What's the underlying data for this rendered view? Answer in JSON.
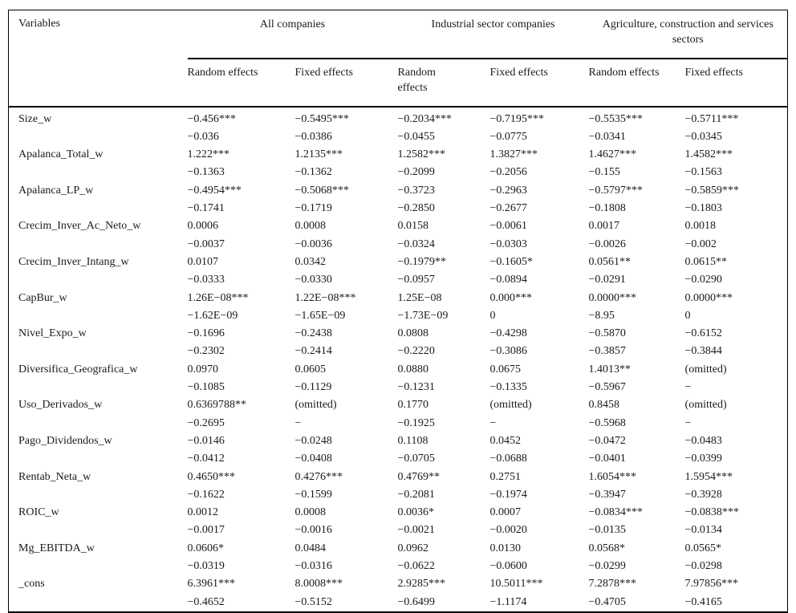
{
  "table": {
    "variables_header": "Variables",
    "groups": [
      {
        "label": "All companies"
      },
      {
        "label": "Industrial sector companies"
      },
      {
        "label": "Agriculture, construction and services sectors"
      }
    ],
    "subheaders": [
      "Random effects",
      "Fixed effects",
      "Random effects",
      "Fixed effects",
      "Random effects",
      "Fixed effects"
    ],
    "rows": [
      {
        "variable": "Size_w",
        "coef": [
          "−0.456***",
          "−0.5495***",
          "−0.2034***",
          "−0.7195***",
          "−0.5535***",
          "−0.5711***"
        ],
        "se": [
          "−0.036",
          "−0.0386",
          "−0.0455",
          "−0.0775",
          "−0.0341",
          "−0.0345"
        ]
      },
      {
        "variable": "Apalanca_Total_w",
        "coef": [
          "1.222***",
          "1.2135***",
          "1.2582***",
          "1.3827***",
          "1.4627***",
          "1.4582***"
        ],
        "se": [
          "−0.1363",
          "−0.1362",
          "−0.2099",
          "−0.2056",
          "−0.155",
          "−0.1563"
        ]
      },
      {
        "variable": "Apalanca_LP_w",
        "coef": [
          "−0.4954***",
          "−0.5068***",
          "−0.3723",
          "−0.2963",
          "−0.5797***",
          "−0.5859***"
        ],
        "se": [
          "−0.1741",
          "−0.1719",
          "−0.2850",
          "−0.2677",
          "−0.1808",
          "−0.1803"
        ]
      },
      {
        "variable": "Crecim_Inver_Ac_Neto_w",
        "coef": [
          "0.0006",
          "0.0008",
          "0.0158",
          "−0.0061",
          "0.0017",
          "0.0018"
        ],
        "se": [
          "−0.0037",
          "−0.0036",
          "−0.0324",
          "−0.0303",
          "−0.0026",
          "−0.002"
        ]
      },
      {
        "variable": "Crecim_Inver_Intang_w",
        "coef": [
          "0.0107",
          "0.0342",
          "−0.1979**",
          "−0.1605*",
          "0.0561**",
          "0.0615**"
        ],
        "se": [
          "−0.0333",
          "−0.0330",
          "−0.0957",
          "−0.0894",
          "−0.0291",
          "−0.0290"
        ]
      },
      {
        "variable": "CapBur_w",
        "coef": [
          "1.26E−08***",
          "1.22E−08***",
          "1.25E−08",
          "0.000***",
          "0.0000***",
          "0.0000***"
        ],
        "se": [
          "−1.62E−09",
          "−1.65E−09",
          "−1.73E−09",
          "0",
          "−8.95",
          "0"
        ]
      },
      {
        "variable": "Nivel_Expo_w",
        "coef": [
          "−0.1696",
          "−0.2438",
          "0.0808",
          "−0.4298",
          "−0.5870",
          "−0.6152"
        ],
        "se": [
          "−0.2302",
          "−0.2414",
          "−0.2220",
          "−0.3086",
          "−0.3857",
          "−0.3844"
        ]
      },
      {
        "variable": "Diversifica_Geografica_w",
        "coef": [
          "0.0970",
          "0.0605",
          "0.0880",
          "0.0675",
          "1.4013**",
          "(omitted)"
        ],
        "se": [
          "−0.1085",
          "−0.1129",
          "−0.1231",
          "−0.1335",
          "−0.5967",
          "−"
        ]
      },
      {
        "variable": "Uso_Derivados_w",
        "coef": [
          "0.6369788**",
          "(omitted)",
          "0.1770",
          "(omitted)",
          "0.8458",
          "(omitted)"
        ],
        "se": [
          "−0.2695",
          "−",
          "−0.1925",
          "−",
          "−0.5968",
          "−"
        ]
      },
      {
        "variable": "Pago_Dividendos_w",
        "coef": [
          "−0.0146",
          "−0.0248",
          "0.1108",
          "0.0452",
          "−0.0472",
          "−0.0483"
        ],
        "se": [
          "−0.0412",
          "−0.0408",
          "−0.0705",
          "−0.0688",
          "−0.0401",
          "−0.0399"
        ]
      },
      {
        "variable": "Rentab_Neta_w",
        "coef": [
          "0.4650***",
          "0.4276***",
          "0.4769**",
          "0.2751",
          "1.6054***",
          "1.5954***"
        ],
        "se": [
          "−0.1622",
          "−0.1599",
          "−0.2081",
          "−0.1974",
          "−0.3947",
          "−0.3928"
        ]
      },
      {
        "variable": "ROIC_w",
        "coef": [
          "0.0012",
          "0.0008",
          "0.0036*",
          "0.0007",
          "−0.0834***",
          "−0.0838***"
        ],
        "se": [
          "−0.0017",
          "−0.0016",
          "−0.0021",
          "−0.0020",
          "−0.0135",
          "−0.0134"
        ]
      },
      {
        "variable": "Mg_EBITDA_w",
        "coef": [
          "0.0606*",
          "0.0484",
          "0.0962",
          "0.0130",
          "0.0568*",
          "0.0565*"
        ],
        "se": [
          "−0.0319",
          "−0.0316",
          "−0.0622",
          "−0.0600",
          "−0.0299",
          "−0.0298"
        ]
      },
      {
        "variable": "_cons",
        "coef": [
          "6.3961***",
          "8.0008***",
          "2.9285***",
          "10.5011***",
          "7.2878***",
          "7.97856***"
        ],
        "se": [
          "−0.4652",
          "−0.5152",
          "−0.6499",
          "−1.1174",
          "−0.4705",
          "−0.4165"
        ]
      }
    ]
  }
}
